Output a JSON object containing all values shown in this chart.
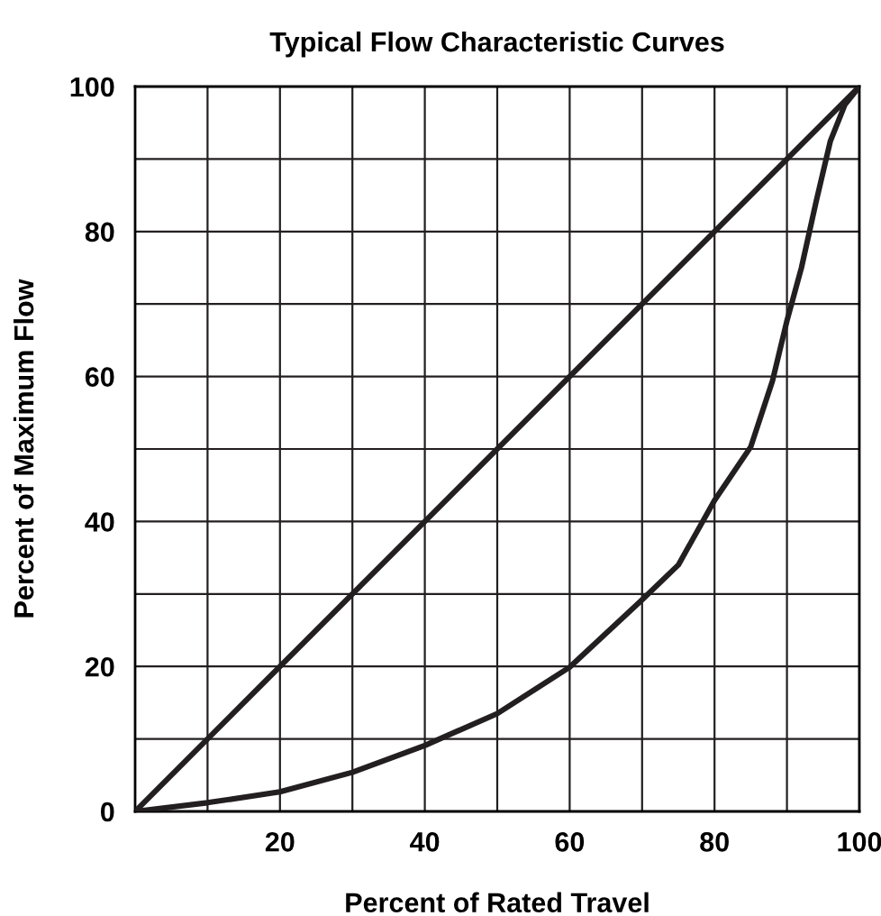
{
  "chart_data": {
    "type": "line",
    "title": "Typical Flow Characteristic Curves",
    "xlabel": "Percent of Rated Travel",
    "ylabel": "Percent of Maximum Flow",
    "series": [
      {
        "color": "#231f20",
        "x": [
          0,
          100
        ],
        "values": [
          0,
          100
        ]
      },
      {
        "color": "#231f20",
        "x": [
          0,
          10,
          20,
          30,
          40,
          50,
          60,
          70,
          75,
          80,
          85,
          88,
          90,
          92,
          94,
          96,
          98,
          100
        ],
        "values": [
          0,
          1.2,
          2.7,
          5.4,
          9.1,
          13.5,
          19.9,
          29.2,
          34,
          42.9,
          50.3,
          59.4,
          67.7,
          75,
          84,
          92.5,
          97.5,
          100
        ]
      }
    ],
    "xlim": [
      0,
      100
    ],
    "ylim": [
      0,
      100
    ],
    "xticks": [
      {
        "value": 10,
        "label": null
      },
      20,
      {
        "value": 30,
        "label": null
      },
      40,
      {
        "value": 50,
        "label": null
      },
      60,
      {
        "value": 70,
        "label": null
      },
      80,
      {
        "value": 90,
        "label": null
      },
      100
    ],
    "yticks": [
      0,
      {
        "value": 10,
        "label": null
      },
      20,
      {
        "value": 30,
        "label": null
      },
      40,
      {
        "value": 50,
        "label": null
      },
      60,
      {
        "value": 70,
        "label": null
      },
      80,
      {
        "value": 90,
        "label": null
      },
      100
    ],
    "grid": true,
    "legend": false,
    "marker": "none",
    "line_style": "solid"
  }
}
